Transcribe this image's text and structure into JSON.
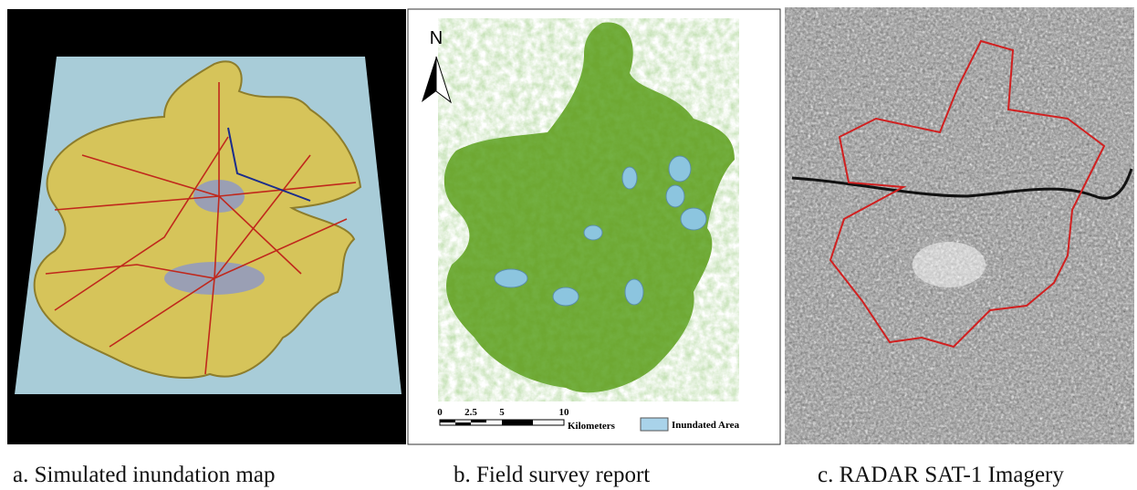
{
  "panels": [
    {
      "caption": "a. Simulated inundation map"
    },
    {
      "caption": "b. Field survey report",
      "north": "N",
      "scale": {
        "ticks": [
          "0",
          "2.5",
          "5",
          "10"
        ],
        "unit": "Kilometers"
      },
      "legend": "Inundated Area"
    },
    {
      "caption": "c. RADAR SAT-1 Imagery"
    }
  ]
}
